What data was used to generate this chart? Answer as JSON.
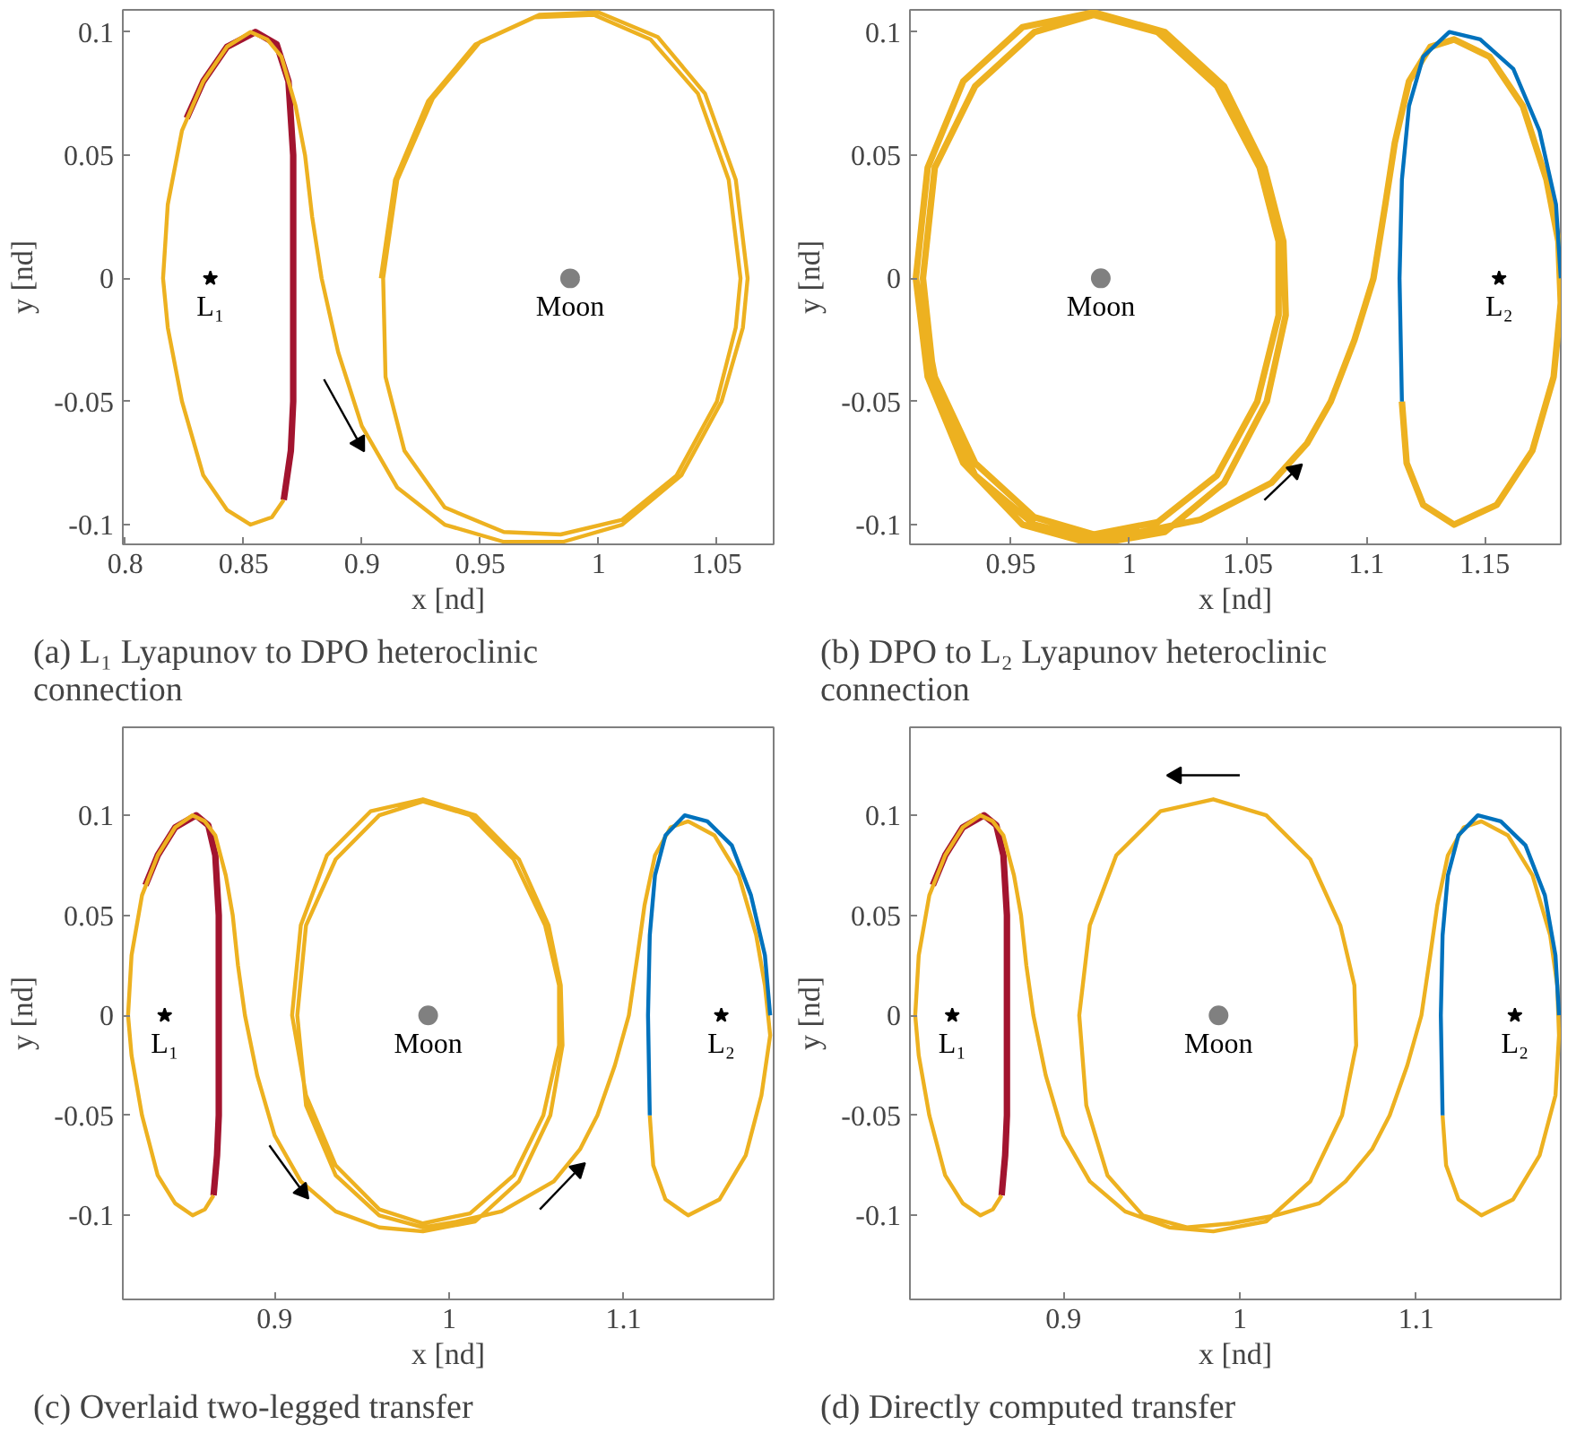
{
  "chart_data": [
    {
      "type": "line",
      "title": "(a) L₁ Lyapunov to DPO heteroclinic connection",
      "xlabel": "x [nd]",
      "ylabel": "y [nd]",
      "xlim": [
        0.799,
        1.074
      ],
      "ylim": [
        -0.108,
        0.109
      ],
      "xticks": [
        0.8,
        0.85,
        0.9,
        0.95,
        1,
        1.05
      ],
      "yticks": [
        -0.1,
        -0.05,
        0,
        0.05,
        0.1
      ],
      "annotations": [
        {
          "text": "L₁",
          "x": 0.836,
          "y": 0
        },
        {
          "text": "Moon",
          "x": 0.988,
          "y": 0
        }
      ],
      "series": [
        {
          "color": "#a2142f",
          "x": [
            0.826,
            0.833,
            0.843,
            0.855,
            0.864,
            0.869,
            0.871,
            0.871,
            0.871,
            0.871,
            0.87,
            0.867
          ],
          "values": [
            0.065,
            0.08,
            0.094,
            0.1,
            0.095,
            0.08,
            0.05,
            0.02,
            -0.02,
            -0.05,
            -0.07,
            -0.09
          ]
        },
        {
          "color": "#edb120",
          "x": [
            0.867,
            0.862,
            0.853,
            0.843,
            0.833,
            0.824,
            0.818,
            0.816,
            0.818,
            0.824,
            0.833,
            0.843,
            0.853,
            0.86,
            0.866,
            0.872,
            0.876,
            0.879,
            0.883,
            0.89,
            0.9,
            0.915,
            0.935,
            0.96,
            0.985,
            1.01,
            1.035,
            1.052,
            1.061,
            1.063,
            1.058,
            1.045,
            1.025,
            1.0,
            0.975,
            0.95,
            0.93,
            0.915,
            0.909,
            0.91,
            0.918,
            0.935,
            0.96,
            0.984,
            1.01,
            1.033,
            1.05,
            1.058,
            1.06,
            1.055,
            1.042,
            1.022,
            0.998,
            0.973,
            0.948,
            0.928,
            0.914,
            0.908
          ],
          "values": [
            -0.09,
            -0.097,
            -0.1,
            -0.094,
            -0.08,
            -0.05,
            -0.02,
            0,
            0.03,
            0.06,
            0.08,
            0.094,
            0.1,
            0.097,
            0.09,
            0.07,
            0.05,
            0.025,
            0,
            -0.03,
            -0.06,
            -0.085,
            -0.1,
            -0.107,
            -0.107,
            -0.1,
            -0.08,
            -0.05,
            -0.02,
            0,
            0.04,
            0.075,
            0.098,
            0.108,
            0.107,
            0.096,
            0.073,
            0.04,
            0,
            -0.04,
            -0.07,
            -0.093,
            -0.103,
            -0.104,
            -0.098,
            -0.08,
            -0.05,
            -0.02,
            0,
            0.04,
            0.075,
            0.097,
            0.107,
            0.106,
            0.095,
            0.072,
            0.04,
            0
          ]
        },
        {
          "color": "#000000",
          "marker": "triangle",
          "x": [
            0.884,
            0.899
          ],
          "values": [
            -0.041,
            -0.067
          ]
        },
        {
          "type": "scatter",
          "color": "#000000",
          "marker": "star",
          "x": [
            0.836
          ],
          "values": [
            0
          ]
        },
        {
          "type": "scatter",
          "color": "#808080",
          "marker": "circle",
          "x": [
            0.988
          ],
          "values": [
            0
          ]
        }
      ]
    },
    {
      "type": "line",
      "title": "(b) DPO to L₂ Lyapunov heteroclinic connection",
      "xlabel": "x [nd]",
      "ylabel": "y [nd]",
      "xlim": [
        0.9075,
        1.182
      ],
      "ylim": [
        -0.108,
        0.109
      ],
      "xticks": [
        0.95,
        1,
        1.05,
        1.1,
        1.15
      ],
      "yticks": [
        -0.1,
        -0.05,
        0,
        0.05,
        0.1
      ],
      "annotations": [
        {
          "text": "Moon",
          "x": 0.988,
          "y": 0
        },
        {
          "text": "L₂",
          "x": 1.156,
          "y": 0
        }
      ],
      "series": [
        {
          "color": "#edb120",
          "x": [
            0.91,
            0.915,
            0.93,
            0.955,
            0.985,
            1.015,
            1.04,
            1.058,
            1.066,
            1.065,
            1.057,
            1.04,
            1.015,
            0.985,
            0.955,
            0.93,
            0.915,
            0.91,
            0.918,
            0.935,
            0.96,
            0.985,
            1.012,
            1.037,
            1.054,
            1.063,
            1.063,
            1.055,
            1.037,
            1.012,
            0.985,
            0.96,
            0.935,
            0.918,
            0.913,
            0.918,
            0.935,
            0.96,
            0.985,
            1.005,
            1.03,
            1.06,
            1.075,
            1.085,
            1.095,
            1.103,
            1.108,
            1.112,
            1.118,
            1.127,
            1.137,
            1.152,
            1.166,
            1.176,
            1.181,
            1.182,
            1.179,
            1.17,
            1.155,
            1.137,
            1.124,
            1.117,
            1.115
          ],
          "values": [
            0,
            -0.04,
            -0.075,
            -0.1,
            -0.108,
            -0.103,
            -0.083,
            -0.05,
            -0.015,
            0.015,
            0.045,
            0.078,
            0.1,
            0.108,
            0.102,
            0.08,
            0.045,
            0,
            -0.04,
            -0.075,
            -0.097,
            -0.104,
            -0.099,
            -0.08,
            -0.05,
            -0.015,
            0.015,
            0.045,
            0.078,
            0.1,
            0.107,
            0.1,
            0.078,
            0.045,
            0,
            -0.045,
            -0.08,
            -0.1,
            -0.106,
            -0.103,
            -0.098,
            -0.083,
            -0.067,
            -0.05,
            -0.025,
            0,
            0.03,
            0.055,
            0.08,
            0.094,
            0.097,
            0.09,
            0.07,
            0.04,
            0.015,
            -0.01,
            -0.04,
            -0.07,
            -0.092,
            -0.1,
            -0.092,
            -0.075,
            -0.05
          ]
        },
        {
          "color": "#0072bd",
          "x": [
            1.115,
            1.114,
            1.115,
            1.118,
            1.124,
            1.135,
            1.148,
            1.162,
            1.173,
            1.18,
            1.182
          ],
          "values": [
            -0.05,
            0,
            0.04,
            0.07,
            0.09,
            0.1,
            0.097,
            0.085,
            0.06,
            0.03,
            0
          ]
        },
        {
          "color": "#000000",
          "marker": "triangle",
          "x": [
            1.057,
            1.07
          ],
          "values": [
            -0.09,
            -0.078
          ]
        },
        {
          "type": "scatter",
          "color": "#000000",
          "marker": "star",
          "x": [
            1.156
          ],
          "values": [
            0
          ]
        },
        {
          "type": "scatter",
          "color": "#808080",
          "marker": "circle",
          "x": [
            0.988
          ],
          "values": [
            0
          ]
        }
      ]
    },
    {
      "type": "line",
      "title": "(c) Overlaid two-legged transfer",
      "xlabel": "x [nd]",
      "ylabel": "y [nd]",
      "xlim": [
        0.813,
        1.186
      ],
      "ylim": [
        -0.142,
        0.144
      ],
      "xticks": [
        0.9,
        1,
        1.1
      ],
      "yticks": [
        -0.1,
        -0.05,
        0,
        0.05,
        0.1
      ],
      "annotations": [
        {
          "text": "L₁",
          "x": 0.837,
          "y": 0
        },
        {
          "text": "Moon",
          "x": 0.988,
          "y": 0
        },
        {
          "text": "L₂",
          "x": 1.156,
          "y": 0
        }
      ],
      "series": [
        {
          "color": "#a2142f",
          "x": [
            0.826,
            0.833,
            0.843,
            0.855,
            0.862,
            0.866,
            0.868,
            0.868,
            0.868,
            0.868,
            0.867,
            0.865
          ],
          "values": [
            0.065,
            0.08,
            0.094,
            0.1,
            0.095,
            0.08,
            0.05,
            0.02,
            -0.02,
            -0.05,
            -0.07,
            -0.09
          ]
        },
        {
          "color": "#edb120",
          "x": [
            0.865,
            0.86,
            0.853,
            0.843,
            0.833,
            0.824,
            0.818,
            0.816,
            0.818,
            0.824,
            0.833,
            0.843,
            0.853,
            0.86,
            0.866,
            0.872,
            0.876,
            0.879,
            0.883,
            0.89,
            0.9,
            0.915,
            0.935,
            0.96,
            0.985,
            1.015,
            1.04,
            1.058,
            1.065,
            1.064,
            1.057,
            1.04,
            1.015,
            0.985,
            0.955,
            0.93,
            0.915,
            0.91,
            0.918,
            0.935,
            0.96,
            0.985,
            1.012,
            1.037,
            1.054,
            1.063,
            1.063,
            1.055,
            1.037,
            1.012,
            0.985,
            0.96,
            0.935,
            0.918,
            0.913,
            0.918,
            0.935,
            0.96,
            0.985,
            1.005,
            1.03,
            1.06,
            1.075,
            1.085,
            1.095,
            1.103,
            1.108,
            1.112,
            1.118,
            1.127,
            1.137,
            1.152,
            1.166,
            1.176,
            1.181,
            1.184,
            1.179,
            1.17,
            1.155,
            1.137,
            1.124,
            1.117,
            1.115
          ],
          "values": [
            -0.09,
            -0.097,
            -0.1,
            -0.094,
            -0.08,
            -0.05,
            -0.02,
            0,
            0.03,
            0.06,
            0.08,
            0.094,
            0.1,
            0.097,
            0.09,
            0.07,
            0.05,
            0.025,
            0,
            -0.03,
            -0.06,
            -0.083,
            -0.098,
            -0.106,
            -0.108,
            -0.103,
            -0.083,
            -0.05,
            -0.015,
            0.015,
            0.045,
            0.078,
            0.1,
            0.108,
            0.102,
            0.08,
            0.045,
            0,
            -0.04,
            -0.075,
            -0.097,
            -0.104,
            -0.099,
            -0.08,
            -0.05,
            -0.015,
            0.015,
            0.045,
            0.078,
            0.1,
            0.107,
            0.1,
            0.078,
            0.045,
            0,
            -0.045,
            -0.08,
            -0.1,
            -0.106,
            -0.103,
            -0.098,
            -0.083,
            -0.067,
            -0.05,
            -0.025,
            0,
            0.03,
            0.055,
            0.08,
            0.094,
            0.097,
            0.09,
            0.07,
            0.04,
            0.015,
            -0.01,
            -0.04,
            -0.07,
            -0.092,
            -0.1,
            -0.092,
            -0.075,
            -0.05
          ]
        },
        {
          "color": "#0072bd",
          "x": [
            1.115,
            1.114,
            1.115,
            1.118,
            1.124,
            1.135,
            1.148,
            1.162,
            1.173,
            1.181,
            1.184
          ],
          "values": [
            -0.05,
            0,
            0.04,
            0.07,
            0.09,
            0.1,
            0.097,
            0.085,
            0.06,
            0.03,
            0
          ]
        },
        {
          "color": "#000000",
          "marker": "triangle",
          "x": [
            0.897,
            0.916
          ],
          "values": [
            -0.065,
            -0.088
          ]
        },
        {
          "color": "#000000",
          "marker": "triangle",
          "x": [
            1.052,
            1.074
          ],
          "values": [
            -0.097,
            -0.077
          ]
        },
        {
          "type": "scatter",
          "color": "#000000",
          "marker": "star",
          "x": [
            0.837,
            1.156
          ],
          "values": [
            0,
            0
          ]
        },
        {
          "type": "scatter",
          "color": "#808080",
          "marker": "circle",
          "x": [
            0.988
          ],
          "values": [
            0
          ]
        }
      ]
    },
    {
      "type": "line",
      "title": "(d) Directly computed transfer",
      "xlabel": "x [nd]",
      "ylabel": "y [nd]",
      "xlim": [
        0.813,
        1.182
      ],
      "ylim": [
        -0.142,
        0.144
      ],
      "xticks": [
        0.9,
        1,
        1.1
      ],
      "yticks": [
        -0.1,
        -0.05,
        0,
        0.05,
        0.1
      ],
      "annotations": [
        {
          "text": "L₁",
          "x": 0.837,
          "y": 0
        },
        {
          "text": "Moon",
          "x": 0.988,
          "y": 0
        },
        {
          "text": "L₂",
          "x": 1.156,
          "y": 0
        }
      ],
      "series": [
        {
          "color": "#a2142f",
          "x": [
            0.826,
            0.833,
            0.843,
            0.855,
            0.862,
            0.866,
            0.868,
            0.868,
            0.868,
            0.868,
            0.867,
            0.865
          ],
          "values": [
            0.065,
            0.08,
            0.094,
            0.1,
            0.095,
            0.08,
            0.05,
            0.02,
            -0.02,
            -0.05,
            -0.07,
            -0.09
          ]
        },
        {
          "color": "#edb120",
          "x": [
            0.865,
            0.86,
            0.853,
            0.843,
            0.833,
            0.824,
            0.818,
            0.816,
            0.818,
            0.824,
            0.833,
            0.843,
            0.853,
            0.86,
            0.866,
            0.872,
            0.876,
            0.879,
            0.883,
            0.89,
            0.9,
            0.915,
            0.935,
            0.96,
            0.985,
            1.015,
            1.04,
            1.058,
            1.066,
            1.065,
            1.057,
            1.04,
            1.015,
            0.985,
            0.955,
            0.93,
            0.915,
            0.909,
            0.913,
            0.925,
            0.945,
            0.97,
            0.995,
            1.02,
            1.045,
            1.06,
            1.075,
            1.085,
            1.095,
            1.103,
            1.108,
            1.112,
            1.118,
            1.127,
            1.137,
            1.152,
            1.166,
            1.176,
            1.18,
            1.181,
            1.179,
            1.17,
            1.155,
            1.137,
            1.124,
            1.117,
            1.115
          ],
          "values": [
            -0.09,
            -0.097,
            -0.1,
            -0.094,
            -0.08,
            -0.05,
            -0.02,
            0,
            0.03,
            0.06,
            0.08,
            0.094,
            0.1,
            0.097,
            0.09,
            0.07,
            0.05,
            0.025,
            0,
            -0.03,
            -0.06,
            -0.083,
            -0.098,
            -0.106,
            -0.108,
            -0.103,
            -0.083,
            -0.05,
            -0.015,
            0.015,
            0.045,
            0.078,
            0.1,
            0.108,
            0.102,
            0.08,
            0.045,
            0,
            -0.045,
            -0.08,
            -0.1,
            -0.106,
            -0.104,
            -0.1,
            -0.094,
            -0.083,
            -0.067,
            -0.05,
            -0.025,
            0,
            0.03,
            0.055,
            0.08,
            0.094,
            0.097,
            0.09,
            0.07,
            0.04,
            0.015,
            -0.01,
            -0.04,
            -0.07,
            -0.092,
            -0.1,
            -0.092,
            -0.075,
            -0.05
          ]
        },
        {
          "color": "#0072bd",
          "x": [
            1.115,
            1.114,
            1.115,
            1.118,
            1.124,
            1.135,
            1.148,
            1.162,
            1.173,
            1.179,
            1.181
          ],
          "values": [
            -0.05,
            0,
            0.04,
            0.07,
            0.09,
            0.1,
            0.097,
            0.085,
            0.06,
            0.03,
            0
          ]
        },
        {
          "color": "#000000",
          "marker": "triangle",
          "x": [
            1.0,
            0.964
          ],
          "values": [
            0.12,
            0.12
          ]
        },
        {
          "type": "scatter",
          "color": "#000000",
          "marker": "star",
          "x": [
            0.837,
            1.156
          ],
          "values": [
            0,
            0
          ]
        },
        {
          "type": "scatter",
          "color": "#808080",
          "marker": "circle",
          "x": [
            0.988
          ],
          "values": [
            0
          ]
        }
      ]
    }
  ]
}
